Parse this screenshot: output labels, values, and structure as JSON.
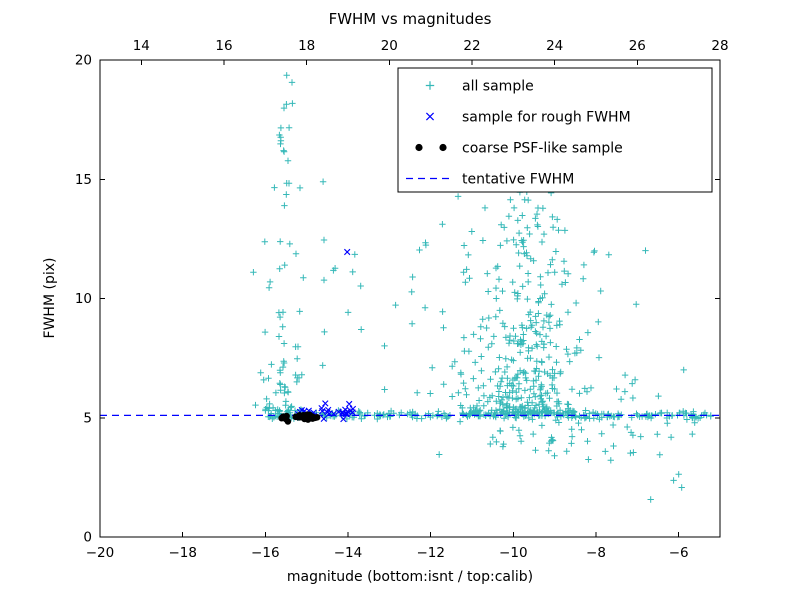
{
  "chart_data": {
    "type": "scatter",
    "title": "FWHM vs magnitudes",
    "xlabel": "magnitude (bottom:isnt / top:calib)",
    "ylabel": "FWHM (pix)",
    "figure_background": "#ffffff",
    "axes": {
      "x_bottom": {
        "min": -20,
        "max": -5,
        "tick_values": [
          -20,
          -18,
          -16,
          -14,
          -12,
          -10,
          -8,
          -6
        ],
        "tick_labels": [
          "−20",
          "−18",
          "−16",
          "−14",
          "−12",
          "−10",
          "−8",
          "−6"
        ]
      },
      "x_top": {
        "tick_values_calib": [
          14,
          16,
          18,
          20,
          22,
          24,
          26,
          28
        ],
        "tick_labels": [
          "14",
          "16",
          "18",
          "20",
          "22",
          "24",
          "26",
          "28"
        ],
        "calib_minus_isnt_offset": 33
      },
      "y_left": {
        "min": 0,
        "max": 20,
        "tick_values": [
          0,
          5,
          10,
          15,
          20
        ],
        "tick_labels": [
          "0",
          "5",
          "10",
          "15",
          "20"
        ]
      },
      "grid": false
    },
    "tentative_fwhm_value": 5.1,
    "colors": {
      "all_sample": "#35b8b8",
      "rough_fwhm": "#0000ff",
      "psf_like": "#000000",
      "tentative_line": "#0000ff",
      "axes_stroke": "#000000"
    },
    "legend": {
      "position": "upper right",
      "entries": [
        {
          "label": "all sample",
          "marker": "plus",
          "color": "#35b8b8"
        },
        {
          "label": "sample for rough FWHM",
          "marker": "x",
          "color": "#0000ff"
        },
        {
          "label": "coarse PSF-like sample",
          "marker": "dot-pair",
          "color": "#000000"
        },
        {
          "label": "tentative FWHM",
          "marker": "dashed-line",
          "color": "#0000ff"
        }
      ]
    },
    "seed": 12,
    "series": [
      {
        "name": "all sample",
        "marker": "plus",
        "color": "#35b8b8",
        "clusters": [
          {
            "count": 70,
            "x": [
              "uniform",
              -16.0,
              -13.6
            ],
            "y": [
              "gauss",
              5.12,
              0.08
            ]
          },
          {
            "count": 200,
            "x": [
              "uniform",
              -13.6,
              -5.2
            ],
            "y": [
              "gauss",
              5.1,
              0.07
            ]
          },
          {
            "count": 85,
            "x": [
              "gauss",
              -15.55,
              0.28
            ],
            "y": [
              "powup",
              5.3,
              19.6,
              2.3
            ]
          },
          {
            "count": 12,
            "x": [
              "gauss",
              -14.3,
              0.6
            ],
            "y": [
              "uniform",
              6.5,
              15.0
            ]
          },
          {
            "count": 320,
            "x": [
              "gauss",
              -9.55,
              0.55
            ],
            "y": [
              "powup",
              5.2,
              15.6,
              2.6
            ]
          },
          {
            "count": 80,
            "x": [
              "gauss",
              -10.4,
              0.95
            ],
            "y": [
              "powup",
              5.4,
              14.5,
              2.0
            ]
          },
          {
            "count": 50,
            "x": [
              "gauss",
              -8.9,
              1.1
            ],
            "y": [
              "gauss",
              4.4,
              0.75
            ]
          },
          {
            "count": 22,
            "x": [
              "uniform",
              -8.3,
              -5.3
            ],
            "y": [
              "uniform",
              3.2,
              7.2
            ]
          },
          {
            "count": 6,
            "x": [
              "uniform",
              -8.2,
              -6.2
            ],
            "y": [
              "uniform",
              9.0,
              12.3
            ]
          },
          {
            "count": 10,
            "x": [
              "uniform",
              -13.2,
              -11.4
            ],
            "y": [
              "uniform",
              5.8,
              12.5
            ]
          },
          {
            "count": 12,
            "x": [
              "gauss",
              -11.25,
              0.12
            ],
            "y": [
              "uniform",
              5.5,
              12.0
            ]
          },
          {
            "count": 4,
            "x": [
              "uniform",
              -7.6,
              -5.8
            ],
            "y": [
              "uniform",
              1.5,
              2.8
            ]
          }
        ],
        "points": []
      },
      {
        "name": "sample for rough FWHM",
        "marker": "x",
        "color": "#0000ff",
        "clusters": [
          {
            "count": 30,
            "x": [
              "uniform",
              -15.25,
              -13.85
            ],
            "y": [
              "gauss",
              5.22,
              0.12
            ]
          }
        ],
        "points": [
          [
            -14.02,
            11.95
          ],
          [
            -14.55,
            5.6
          ]
        ]
      },
      {
        "name": "coarse PSF-like sample",
        "marker": "dot",
        "color": "#000000",
        "clusters": [
          {
            "count": 28,
            "x": [
              "uniform",
              -15.62,
              -14.72
            ],
            "y": [
              "gauss",
              5.03,
              0.05
            ]
          }
        ],
        "points": []
      }
    ]
  }
}
